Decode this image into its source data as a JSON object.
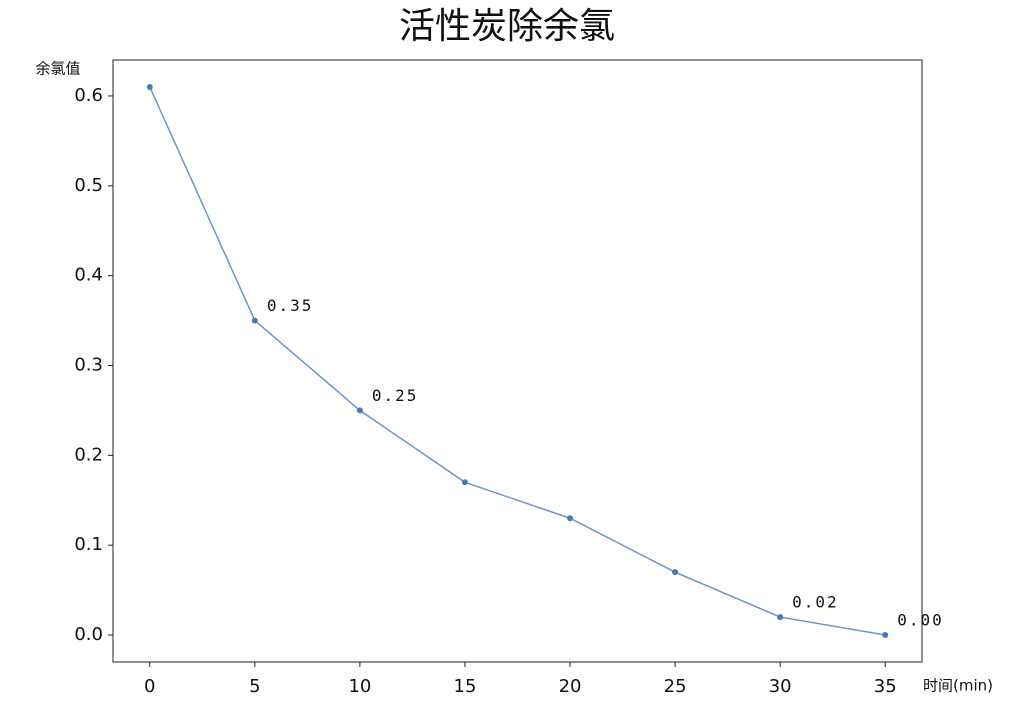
{
  "chart_data": {
    "type": "line",
    "title": "活性炭除余氯",
    "y_label": "余氯值",
    "x_label": "时间(min)",
    "x": [
      0,
      5,
      10,
      15,
      20,
      25,
      30,
      35
    ],
    "series": [
      {
        "color": "#4a7ab5",
        "values": [
          0.61,
          0.35,
          0.25,
          0.17,
          0.13,
          0.07,
          0.02,
          0.0
        ],
        "value_labels": [
          null,
          "0.35",
          "0.25",
          null,
          null,
          null,
          "0.02",
          "0.00"
        ]
      }
    ],
    "xlim": [
      -1.75,
      36.75
    ],
    "xticks": [
      0,
      5,
      10,
      15,
      20,
      25,
      30,
      35
    ],
    "ylim": [
      -0.03,
      0.64
    ],
    "yticks": [
      {
        "value": 0,
        "label": "0.0"
      },
      0.1,
      0.2,
      0.3,
      0.4,
      0.5,
      0.6
    ],
    "grid": false,
    "markers": true
  }
}
